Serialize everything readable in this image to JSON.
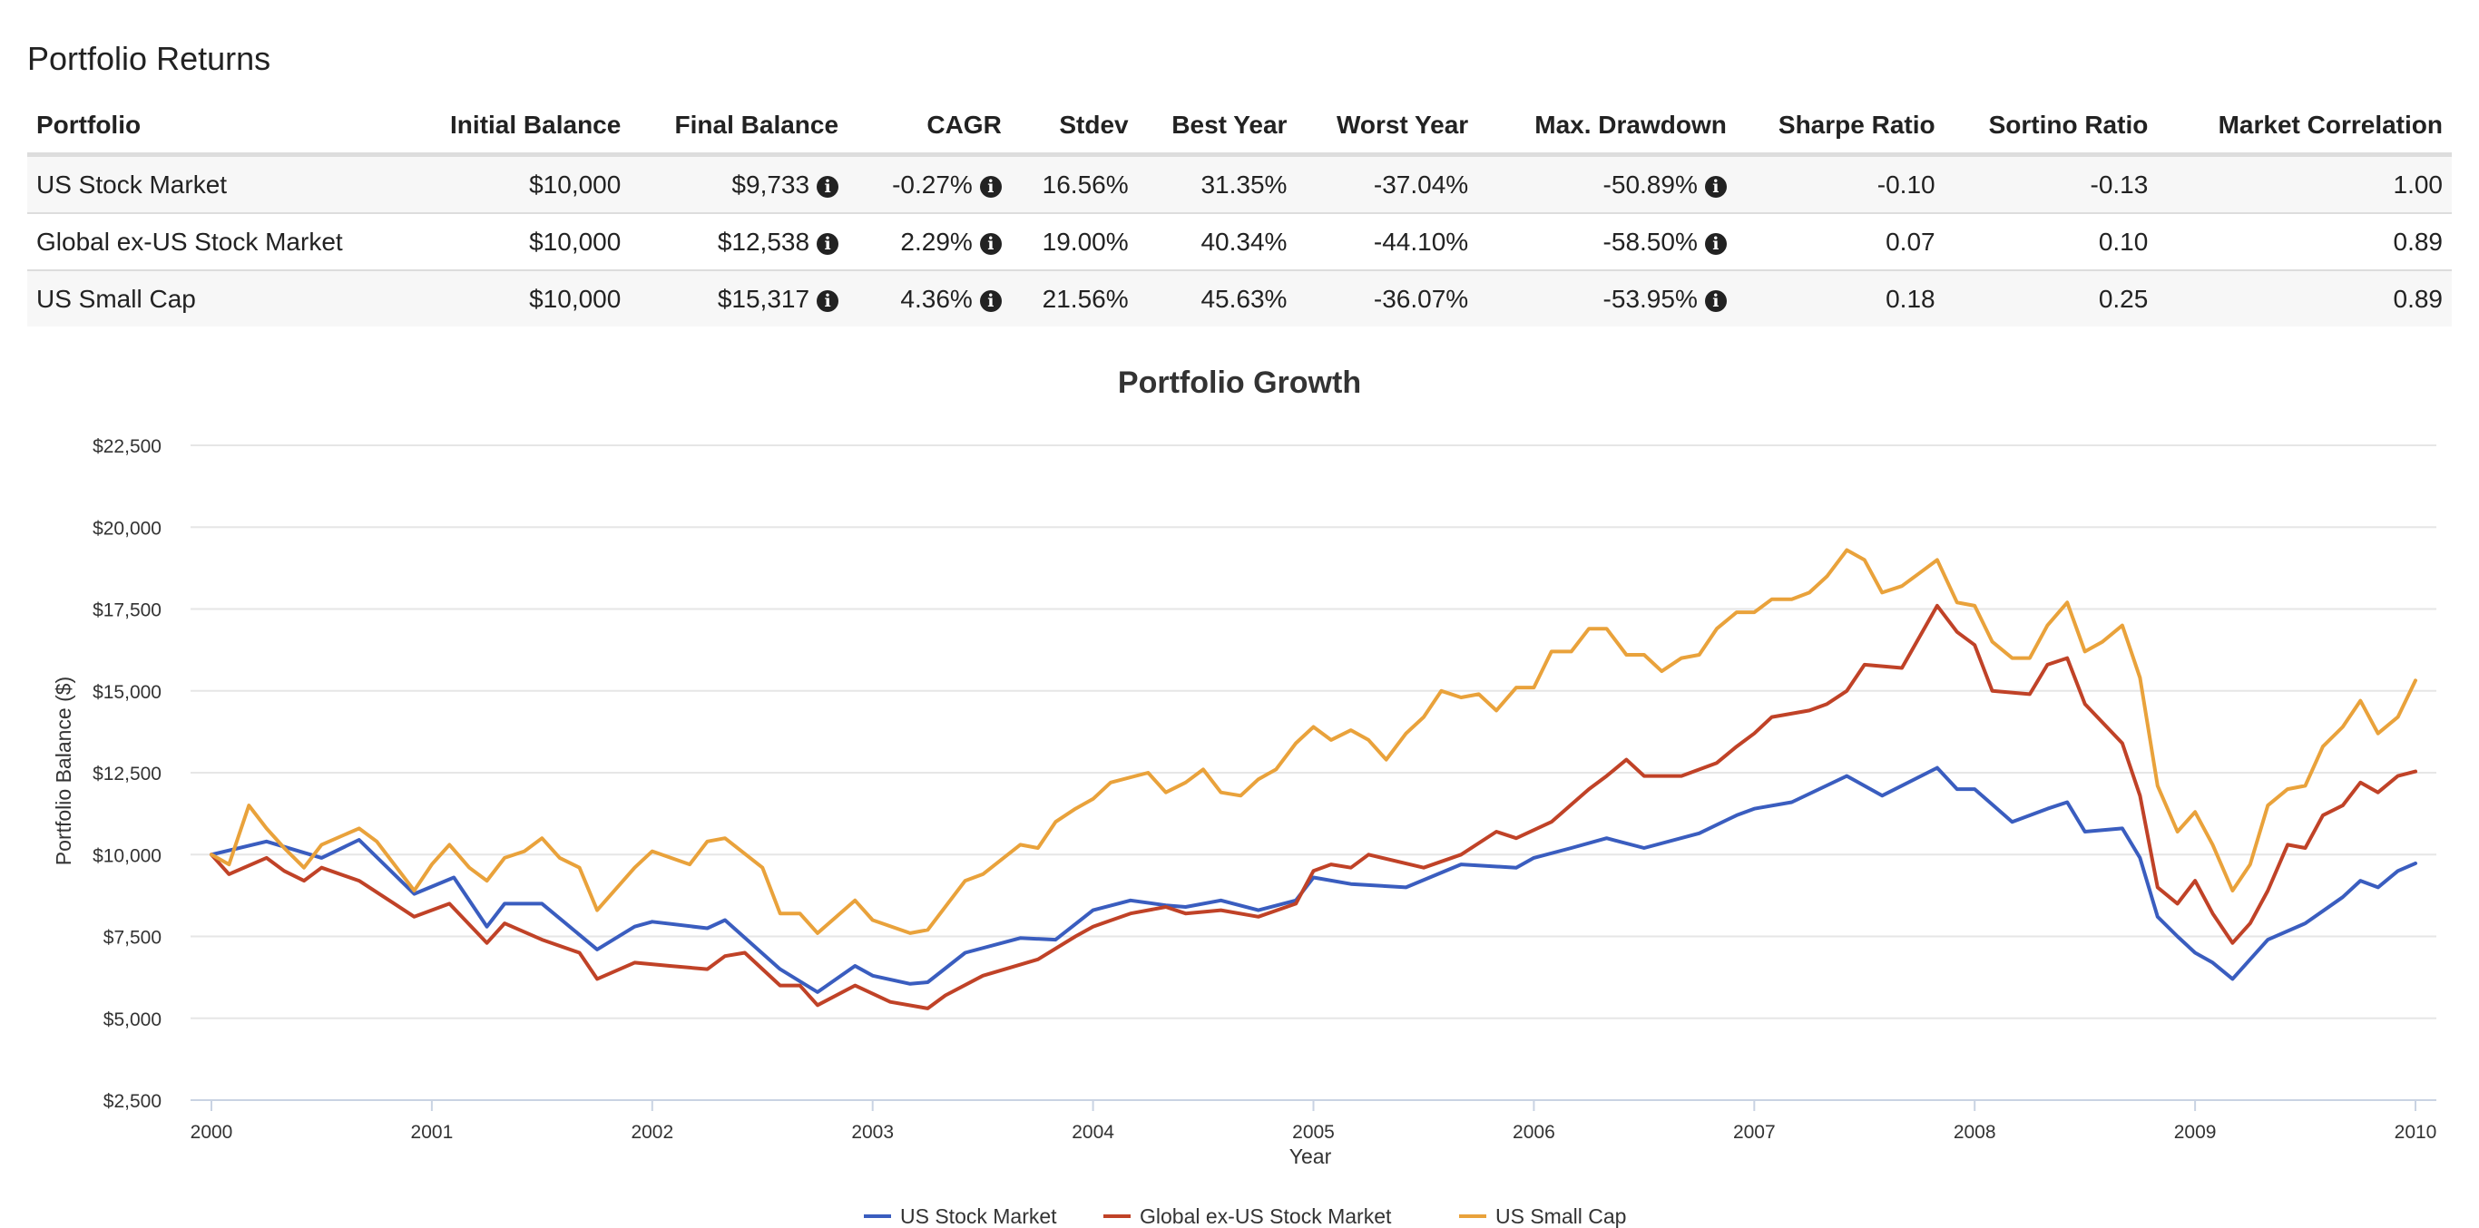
{
  "section_title": "Portfolio Returns",
  "table": {
    "headers": [
      "Portfolio",
      "Initial Balance",
      "Final Balance",
      "CAGR",
      "Stdev",
      "Best Year",
      "Worst Year",
      "Max. Drawdown",
      "Sharpe Ratio",
      "Sortino Ratio",
      "Market Correlation"
    ],
    "rows": [
      {
        "portfolio": "US Stock Market",
        "initial": "$10,000",
        "final": "$9,733",
        "cagr": "-0.27%",
        "stdev": "16.56%",
        "best": "31.35%",
        "worst": "-37.04%",
        "drawdown": "-50.89%",
        "sharpe": "-0.10",
        "sortino": "-0.13",
        "corr": "1.00"
      },
      {
        "portfolio": "Global ex-US Stock Market",
        "initial": "$10,000",
        "final": "$12,538",
        "cagr": "2.29%",
        "stdev": "19.00%",
        "best": "40.34%",
        "worst": "-44.10%",
        "drawdown": "-58.50%",
        "sharpe": "0.07",
        "sortino": "0.10",
        "corr": "0.89"
      },
      {
        "portfolio": "US Small Cap",
        "initial": "$10,000",
        "final": "$15,317",
        "cagr": "4.36%",
        "stdev": "21.56%",
        "best": "45.63%",
        "worst": "-36.07%",
        "drawdown": "-53.95%",
        "sharpe": "0.18",
        "sortino": "0.25",
        "corr": "0.89"
      }
    ],
    "info_icon": "info-circle-icon"
  },
  "chart_data": {
    "type": "line",
    "title": "Portfolio Growth",
    "xlabel": "Year",
    "ylabel": "Portfolio Balance ($)",
    "xlim": [
      2000,
      2010
    ],
    "ylim": [
      2500,
      22500
    ],
    "x_ticks": [
      2000,
      2001,
      2002,
      2003,
      2004,
      2005,
      2006,
      2007,
      2008,
      2009,
      2010
    ],
    "y_ticks": [
      2500,
      5000,
      7500,
      10000,
      12500,
      15000,
      17500,
      20000,
      22500
    ],
    "y_tick_labels": [
      "$2,500",
      "$5,000",
      "$7,500",
      "$10,000",
      "$12,500",
      "$15,000",
      "$17,500",
      "$20,000",
      "$22,500"
    ],
    "grid": true,
    "legend_position": "bottom-center",
    "series": [
      {
        "name": "US Stock Market",
        "color": "#3a5dbf",
        "points": [
          [
            2000.0,
            10000
          ],
          [
            2000.25,
            10400
          ],
          [
            2000.5,
            9900
          ],
          [
            2000.67,
            10450
          ],
          [
            2000.92,
            8800
          ],
          [
            2001.1,
            9300
          ],
          [
            2001.25,
            7800
          ],
          [
            2001.33,
            8500
          ],
          [
            2001.5,
            8500
          ],
          [
            2001.75,
            7100
          ],
          [
            2001.92,
            7800
          ],
          [
            2002.0,
            7950
          ],
          [
            2002.25,
            7750
          ],
          [
            2002.33,
            8000
          ],
          [
            2002.58,
            6500
          ],
          [
            2002.75,
            5800
          ],
          [
            2002.92,
            6600
          ],
          [
            2003.0,
            6300
          ],
          [
            2003.17,
            6050
          ],
          [
            2003.25,
            6100
          ],
          [
            2003.42,
            7000
          ],
          [
            2003.67,
            7450
          ],
          [
            2003.83,
            7400
          ],
          [
            2004.0,
            8300
          ],
          [
            2004.17,
            8600
          ],
          [
            2004.33,
            8450
          ],
          [
            2004.42,
            8400
          ],
          [
            2004.58,
            8600
          ],
          [
            2004.75,
            8300
          ],
          [
            2004.92,
            8600
          ],
          [
            2005.0,
            9300
          ],
          [
            2005.17,
            9100
          ],
          [
            2005.42,
            9000
          ],
          [
            2005.67,
            9700
          ],
          [
            2005.92,
            9600
          ],
          [
            2006.0,
            9900
          ],
          [
            2006.17,
            10200
          ],
          [
            2006.33,
            10500
          ],
          [
            2006.5,
            10200
          ],
          [
            2006.75,
            10650
          ],
          [
            2006.92,
            11200
          ],
          [
            2007.0,
            11400
          ],
          [
            2007.17,
            11600
          ],
          [
            2007.42,
            12400
          ],
          [
            2007.58,
            11800
          ],
          [
            2007.83,
            12650
          ],
          [
            2007.92,
            12000
          ],
          [
            2008.0,
            12000
          ],
          [
            2008.17,
            11000
          ],
          [
            2008.33,
            11400
          ],
          [
            2008.42,
            11600
          ],
          [
            2008.5,
            10700
          ],
          [
            2008.67,
            10800
          ],
          [
            2008.75,
            9900
          ],
          [
            2008.83,
            8100
          ],
          [
            2008.92,
            7500
          ],
          [
            2009.0,
            7000
          ],
          [
            2009.08,
            6700
          ],
          [
            2009.17,
            6200
          ],
          [
            2009.33,
            7400
          ],
          [
            2009.5,
            7900
          ],
          [
            2009.67,
            8700
          ],
          [
            2009.75,
            9200
          ],
          [
            2009.83,
            9000
          ],
          [
            2009.92,
            9500
          ],
          [
            2010.0,
            9733
          ]
        ]
      },
      {
        "name": "Global ex-US Stock Market",
        "color": "#c04227",
        "points": [
          [
            2000.0,
            10000
          ],
          [
            2000.08,
            9400
          ],
          [
            2000.25,
            9900
          ],
          [
            2000.33,
            9500
          ],
          [
            2000.42,
            9200
          ],
          [
            2000.5,
            9600
          ],
          [
            2000.67,
            9200
          ],
          [
            2000.83,
            8500
          ],
          [
            2000.92,
            8100
          ],
          [
            2001.08,
            8500
          ],
          [
            2001.25,
            7300
          ],
          [
            2001.33,
            7900
          ],
          [
            2001.5,
            7400
          ],
          [
            2001.67,
            7000
          ],
          [
            2001.75,
            6200
          ],
          [
            2001.92,
            6700
          ],
          [
            2002.08,
            6600
          ],
          [
            2002.25,
            6500
          ],
          [
            2002.33,
            6900
          ],
          [
            2002.42,
            7000
          ],
          [
            2002.58,
            6000
          ],
          [
            2002.67,
            6000
          ],
          [
            2002.75,
            5400
          ],
          [
            2002.92,
            6000
          ],
          [
            2003.08,
            5500
          ],
          [
            2003.25,
            5300
          ],
          [
            2003.33,
            5700
          ],
          [
            2003.5,
            6300
          ],
          [
            2003.75,
            6800
          ],
          [
            2003.92,
            7500
          ],
          [
            2004.0,
            7800
          ],
          [
            2004.17,
            8200
          ],
          [
            2004.33,
            8400
          ],
          [
            2004.42,
            8200
          ],
          [
            2004.58,
            8300
          ],
          [
            2004.75,
            8100
          ],
          [
            2004.92,
            8500
          ],
          [
            2005.0,
            9500
          ],
          [
            2005.08,
            9700
          ],
          [
            2005.17,
            9600
          ],
          [
            2005.25,
            10000
          ],
          [
            2005.5,
            9600
          ],
          [
            2005.67,
            10000
          ],
          [
            2005.83,
            10700
          ],
          [
            2005.92,
            10500
          ],
          [
            2006.08,
            11000
          ],
          [
            2006.25,
            12000
          ],
          [
            2006.33,
            12400
          ],
          [
            2006.42,
            12900
          ],
          [
            2006.5,
            12400
          ],
          [
            2006.67,
            12400
          ],
          [
            2006.83,
            12800
          ],
          [
            2006.92,
            13300
          ],
          [
            2007.0,
            13700
          ],
          [
            2007.08,
            14200
          ],
          [
            2007.25,
            14400
          ],
          [
            2007.33,
            14600
          ],
          [
            2007.42,
            15000
          ],
          [
            2007.5,
            15800
          ],
          [
            2007.67,
            15700
          ],
          [
            2007.83,
            17600
          ],
          [
            2007.92,
            16800
          ],
          [
            2008.0,
            16400
          ],
          [
            2008.08,
            15000
          ],
          [
            2008.25,
            14900
          ],
          [
            2008.33,
            15800
          ],
          [
            2008.42,
            16000
          ],
          [
            2008.5,
            14600
          ],
          [
            2008.67,
            13400
          ],
          [
            2008.75,
            11800
          ],
          [
            2008.83,
            9000
          ],
          [
            2008.92,
            8500
          ],
          [
            2009.0,
            9200
          ],
          [
            2009.08,
            8200
          ],
          [
            2009.17,
            7300
          ],
          [
            2009.25,
            7900
          ],
          [
            2009.33,
            8900
          ],
          [
            2009.42,
            10300
          ],
          [
            2009.5,
            10200
          ],
          [
            2009.58,
            11200
          ],
          [
            2009.67,
            11500
          ],
          [
            2009.75,
            12200
          ],
          [
            2009.83,
            11900
          ],
          [
            2009.92,
            12400
          ],
          [
            2010.0,
            12538
          ]
        ]
      },
      {
        "name": "US Small Cap",
        "color": "#e9a23b",
        "points": [
          [
            2000.0,
            10000
          ],
          [
            2000.08,
            9700
          ],
          [
            2000.17,
            11500
          ],
          [
            2000.25,
            10800
          ],
          [
            2000.33,
            10200
          ],
          [
            2000.42,
            9600
          ],
          [
            2000.5,
            10300
          ],
          [
            2000.67,
            10800
          ],
          [
            2000.75,
            10400
          ],
          [
            2000.92,
            8900
          ],
          [
            2001.0,
            9700
          ],
          [
            2001.08,
            10300
          ],
          [
            2001.17,
            9600
          ],
          [
            2001.25,
            9200
          ],
          [
            2001.33,
            9900
          ],
          [
            2001.42,
            10100
          ],
          [
            2001.5,
            10500
          ],
          [
            2001.58,
            9900
          ],
          [
            2001.67,
            9600
          ],
          [
            2001.75,
            8300
          ],
          [
            2001.92,
            9600
          ],
          [
            2002.0,
            10100
          ],
          [
            2002.17,
            9700
          ],
          [
            2002.25,
            10400
          ],
          [
            2002.33,
            10500
          ],
          [
            2002.5,
            9600
          ],
          [
            2002.58,
            8200
          ],
          [
            2002.67,
            8200
          ],
          [
            2002.75,
            7600
          ],
          [
            2002.92,
            8600
          ],
          [
            2003.0,
            8000
          ],
          [
            2003.17,
            7600
          ],
          [
            2003.25,
            7700
          ],
          [
            2003.42,
            9200
          ],
          [
            2003.5,
            9400
          ],
          [
            2003.67,
            10300
          ],
          [
            2003.75,
            10200
          ],
          [
            2003.83,
            11000
          ],
          [
            2003.92,
            11400
          ],
          [
            2004.0,
            11700
          ],
          [
            2004.08,
            12200
          ],
          [
            2004.25,
            12500
          ],
          [
            2004.33,
            11900
          ],
          [
            2004.42,
            12200
          ],
          [
            2004.5,
            12600
          ],
          [
            2004.58,
            11900
          ],
          [
            2004.67,
            11800
          ],
          [
            2004.75,
            12300
          ],
          [
            2004.83,
            12600
          ],
          [
            2004.92,
            13400
          ],
          [
            2005.0,
            13900
          ],
          [
            2005.08,
            13500
          ],
          [
            2005.17,
            13800
          ],
          [
            2005.25,
            13500
          ],
          [
            2005.33,
            12900
          ],
          [
            2005.42,
            13700
          ],
          [
            2005.5,
            14200
          ],
          [
            2005.58,
            15000
          ],
          [
            2005.67,
            14800
          ],
          [
            2005.75,
            14900
          ],
          [
            2005.83,
            14400
          ],
          [
            2005.92,
            15100
          ],
          [
            2006.0,
            15100
          ],
          [
            2006.08,
            16200
          ],
          [
            2006.17,
            16200
          ],
          [
            2006.25,
            16900
          ],
          [
            2006.33,
            16900
          ],
          [
            2006.42,
            16100
          ],
          [
            2006.5,
            16100
          ],
          [
            2006.58,
            15600
          ],
          [
            2006.67,
            16000
          ],
          [
            2006.75,
            16100
          ],
          [
            2006.83,
            16900
          ],
          [
            2006.92,
            17400
          ],
          [
            2007.0,
            17400
          ],
          [
            2007.08,
            17800
          ],
          [
            2007.17,
            17800
          ],
          [
            2007.25,
            18000
          ],
          [
            2007.33,
            18500
          ],
          [
            2007.42,
            19300
          ],
          [
            2007.5,
            19000
          ],
          [
            2007.58,
            18000
          ],
          [
            2007.67,
            18200
          ],
          [
            2007.75,
            18600
          ],
          [
            2007.83,
            19000
          ],
          [
            2007.92,
            17700
          ],
          [
            2008.0,
            17600
          ],
          [
            2008.08,
            16500
          ],
          [
            2008.17,
            16000
          ],
          [
            2008.25,
            16000
          ],
          [
            2008.33,
            17000
          ],
          [
            2008.42,
            17700
          ],
          [
            2008.5,
            16200
          ],
          [
            2008.58,
            16500
          ],
          [
            2008.67,
            17000
          ],
          [
            2008.75,
            15400
          ],
          [
            2008.83,
            12100
          ],
          [
            2008.92,
            10700
          ],
          [
            2009.0,
            11300
          ],
          [
            2009.08,
            10300
          ],
          [
            2009.17,
            8900
          ],
          [
            2009.25,
            9700
          ],
          [
            2009.33,
            11500
          ],
          [
            2009.42,
            12000
          ],
          [
            2009.5,
            12100
          ],
          [
            2009.58,
            13300
          ],
          [
            2009.67,
            13900
          ],
          [
            2009.75,
            14700
          ],
          [
            2009.83,
            13700
          ],
          [
            2009.92,
            14200
          ],
          [
            2010.0,
            15317
          ]
        ]
      }
    ]
  }
}
